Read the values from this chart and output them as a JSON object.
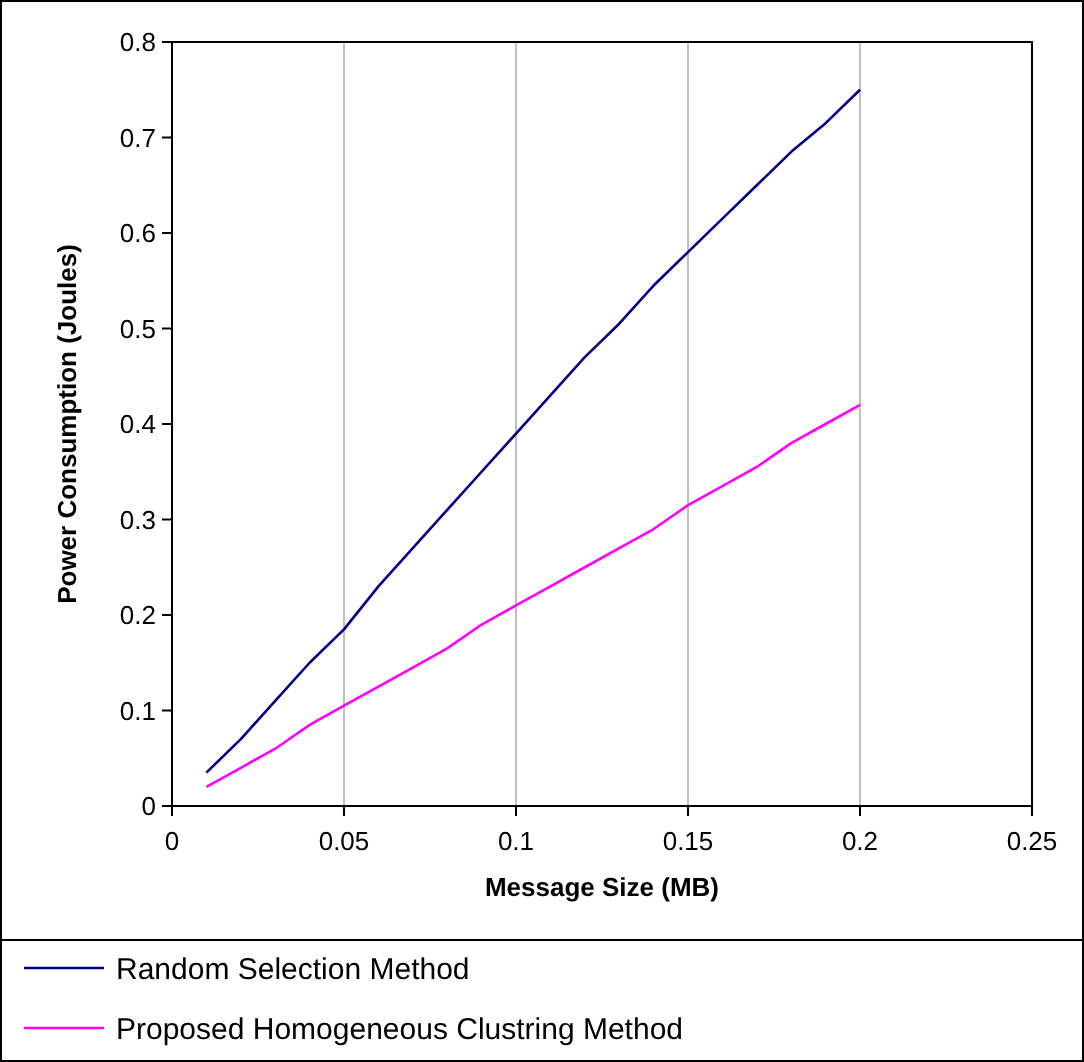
{
  "chart_data": {
    "type": "line",
    "xlabel": "Message Size (MB)",
    "ylabel": "Power Consumption (Joules)",
    "x": [
      0.01,
      0.02,
      0.03,
      0.04,
      0.05,
      0.06,
      0.07,
      0.08,
      0.09,
      0.1,
      0.11,
      0.12,
      0.13,
      0.14,
      0.15,
      0.16,
      0.17,
      0.18,
      0.19,
      0.2
    ],
    "series": [
      {
        "name": "Random Selection Method",
        "color": "#000080",
        "values": [
          0.035,
          0.07,
          0.11,
          0.15,
          0.185,
          0.23,
          0.27,
          0.31,
          0.35,
          0.39,
          0.43,
          0.47,
          0.505,
          0.545,
          0.58,
          0.615,
          0.65,
          0.685,
          0.715,
          0.75
        ]
      },
      {
        "name": "Proposed Homogeneous Clustring Method",
        "color": "#ff00ff",
        "values": [
          0.02,
          0.04,
          0.06,
          0.085,
          0.105,
          0.125,
          0.145,
          0.165,
          0.19,
          0.21,
          0.23,
          0.25,
          0.27,
          0.29,
          0.315,
          0.335,
          0.355,
          0.38,
          0.4,
          0.42
        ]
      }
    ],
    "xlim": [
      0,
      0.25
    ],
    "xticks": [
      0,
      0.05,
      0.1,
      0.15,
      0.2,
      0.25
    ],
    "ylim": [
      0,
      0.8
    ],
    "yticks": [
      0,
      0.1,
      0.2,
      0.3,
      0.4,
      0.5,
      0.6,
      0.7,
      0.8
    ],
    "grid": "x",
    "legend": "bottom",
    "line_style": "solid"
  }
}
